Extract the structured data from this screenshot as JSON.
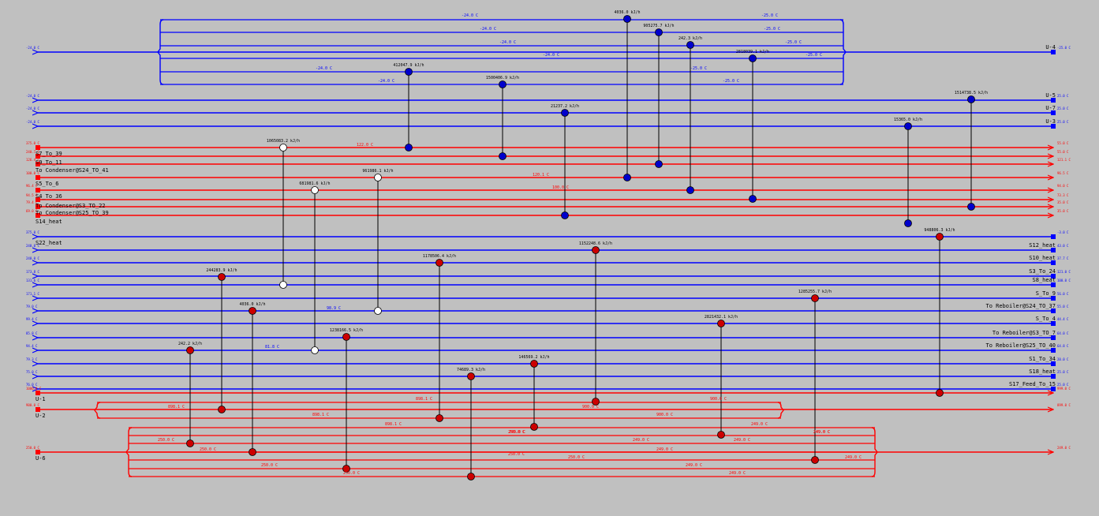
{
  "colors": {
    "background": "#c0c0c0",
    "cold": "#0000ff",
    "hot": "#ff0000",
    "cooler_node": "#0000cc",
    "heater_node": "#cc0000",
    "exchanger_node": "#ffffff"
  },
  "hot_streams": [
    {
      "name": "S7_To_39",
      "temp_left": "375.0 C",
      "temp_right": "55.0 C"
    },
    {
      "name": "S9_To_11",
      "temp_left": "240.7 C",
      "temp_right": "55.0 C"
    },
    {
      "name": "To Condenser@S24_TO_41",
      "temp_left": "126.4 C",
      "temp_right": "121.1 C"
    },
    {
      "name": "S5_To_6",
      "temp_left": "100.0 C",
      "temp_right": "96.5 C"
    },
    {
      "name": "S4_To_36",
      "temp_left": "96.4 C",
      "temp_right": "94.0 C"
    },
    {
      "name": "To Condenser@S3_TO_22",
      "temp_left": "94.5 C",
      "temp_right": "73.3 C"
    },
    {
      "name": "To Condenser@S25_TO_39",
      "temp_left": "79.4 C",
      "temp_right": "35.0 C"
    },
    {
      "name": "S14_heat",
      "temp_left": "69.0 C",
      "temp_right": "35.0 C"
    },
    {
      "name": "U-1",
      "temp_left": "1000.0 C",
      "temp_right": "999.0 C"
    },
    {
      "name": "U-2",
      "temp_left": "900.0 C",
      "temp_right": "899.0 C"
    },
    {
      "name": "U-6",
      "temp_left": "250.0 C",
      "temp_right": "249.0 C"
    }
  ],
  "cold_streams": [
    {
      "name": "U-4",
      "temp_left": "-24.0 C",
      "temp_right": "-25.0 C"
    },
    {
      "name": "U-5",
      "temp_left": "-24.0 C",
      "temp_right": "25.0 C"
    },
    {
      "name": "U-7",
      "temp_left": "-24.0 C",
      "temp_right": "25.0 C"
    },
    {
      "name": "U-3",
      "temp_left": "-24.0 C",
      "temp_right": "25.0 C"
    },
    {
      "name": "S22_heat",
      "temp_left": "375.0 C",
      "temp_right": "-3.0 C"
    },
    {
      "name": "S12_heat",
      "temp_left": "240.0 C",
      "temp_right": "43.0 C"
    },
    {
      "name": "S10_heat",
      "temp_left": "240.0 C",
      "temp_right": "37.7 C"
    },
    {
      "name": "S3_To_24",
      "temp_left": "173.8 C",
      "temp_right": "121.0 C"
    },
    {
      "name": "S8_heat",
      "temp_left": "131.6 C",
      "temp_right": "100.0 C"
    },
    {
      "name": "S_To_9",
      "temp_left": "171.1 C",
      "temp_right": "56.0 C"
    },
    {
      "name": "To Reboiler@S24_TO_37",
      "temp_left": "79.0 C",
      "temp_right": "55.0 C"
    },
    {
      "name": "S_To_4",
      "temp_left": "99.4 C",
      "temp_right": "44.4 C"
    },
    {
      "name": "To Reboiler@S3_TO_7",
      "temp_left": "85.8 C",
      "temp_right": "64.0 C"
    },
    {
      "name": "To Reboiler@S25_TO_40",
      "temp_left": "94.4 C",
      "temp_right": "64.8 C"
    },
    {
      "name": "S1_To_34",
      "temp_left": "79.3 C",
      "temp_right": "20.0 C"
    },
    {
      "name": "S18_heat",
      "temp_left": "75.0 C",
      "temp_right": "25.0 C"
    },
    {
      "name": "S17_Feed_To_15",
      "temp_left": "76.0 C",
      "temp_right": "25.0 C"
    }
  ],
  "duties": [
    "4036.0 kJ/h",
    "905275.7 kJ/h",
    "242.3 kJ/h",
    "2818039.1 kJ/h",
    "412047.9 kJ/h",
    "1500406.9 kJ/h",
    "21237.2 kJ/h",
    "1514738.5 kJ/h",
    "15365.0 kJ/h",
    "1065083.2 kJ/h",
    "961986.1 kJ/h",
    "681981.6 kJ/h",
    "948806.3 kJ/h",
    "1178506.4 kJ/h",
    "1152248.6 kJ/h",
    "244283.9 kJ/h",
    "4036.0 kJ/h",
    "1285255.7 kJ/h",
    "1238166.5 kJ/h",
    "2821432.1 kJ/h",
    "242.2 kJ/h",
    "146569.2 kJ/h",
    "74689.3 kJ/h"
  ],
  "utility_branch_temps": {
    "u4": [
      "-24.0 C",
      "-25.0 C",
      "-24.0 C",
      "-25.0 C",
      "-24.0 C",
      "-25.0 C",
      "-24.0 C",
      "-25.0 C",
      "-24.0 C",
      "-25.0 C",
      "-24.0 C",
      "-25.0 C"
    ],
    "u2": [
      "898.1 C",
      "898.1 C",
      "898.1 C",
      "900.0 C",
      "900.0 C",
      "898.1 C",
      "900.0 C"
    ],
    "u6": [
      "250.0 C",
      "250.0 C",
      "249.0 C",
      "249.0 C",
      "250.0 C",
      "249.0 C",
      "250.0 C",
      "250.0 C",
      "249.0 C",
      "249.0 C",
      "249.0 C",
      "250.0 C",
      "249.0 C",
      "249.0 C",
      "249.0 C",
      "250.0 C",
      "249.0 C"
    ]
  },
  "mid_temps": [
    "122.0 C",
    "120.1 C",
    "100.0 C",
    "98.9 C",
    "81.8 C"
  ]
}
